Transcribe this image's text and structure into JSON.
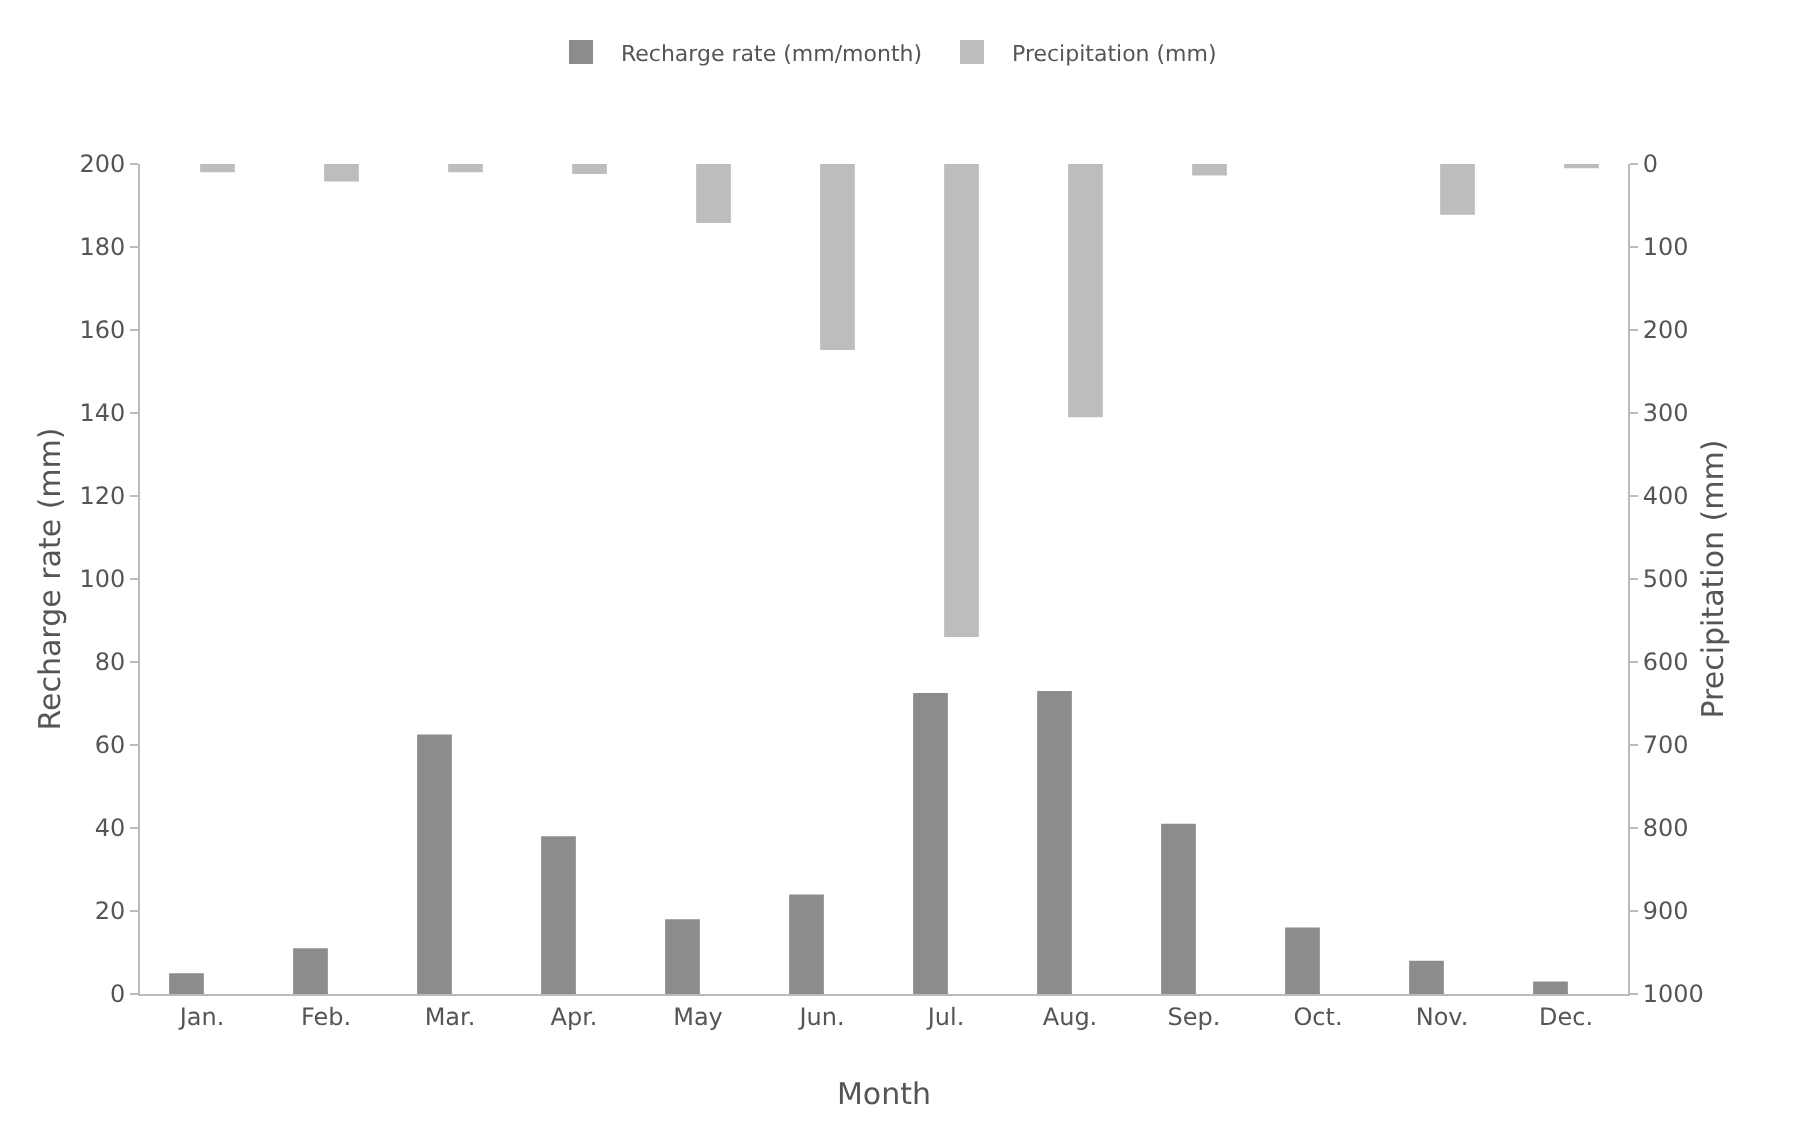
{
  "chart_data": {
    "type": "bar",
    "xlabel": "Month",
    "ylabel": "Recharge rate (mm)",
    "y2label": "Precipitation (mm)",
    "categories": [
      "Jan.",
      "Feb.",
      "Mar.",
      "Apr.",
      "May",
      "Jun.",
      "Jul.",
      "Aug.",
      "Sep.",
      "Oct.",
      "Nov.",
      "Dec."
    ],
    "series": [
      {
        "name": "Recharge rate (mm/month)",
        "color": "#8c8c8c",
        "values": [
          5,
          11,
          62.5,
          38,
          18,
          24,
          72.5,
          73,
          41,
          16,
          8,
          3
        ]
      },
      {
        "name": "Precipitation (mm)",
        "color": "#bdbdbd",
        "axis": "y2",
        "values": [
          10,
          21,
          10,
          12,
          71,
          224,
          570,
          305,
          14,
          null,
          61,
          5
        ]
      }
    ],
    "ylim": [
      0,
      200
    ],
    "yticks": [
      0,
      20,
      40,
      60,
      80,
      100,
      120,
      140,
      160,
      180,
      200
    ],
    "y2lim": [
      1000,
      0
    ],
    "y2ticks": [
      0,
      100,
      200,
      300,
      400,
      500,
      600,
      700,
      800,
      900,
      1000
    ],
    "grid": false,
    "legend": "top"
  }
}
